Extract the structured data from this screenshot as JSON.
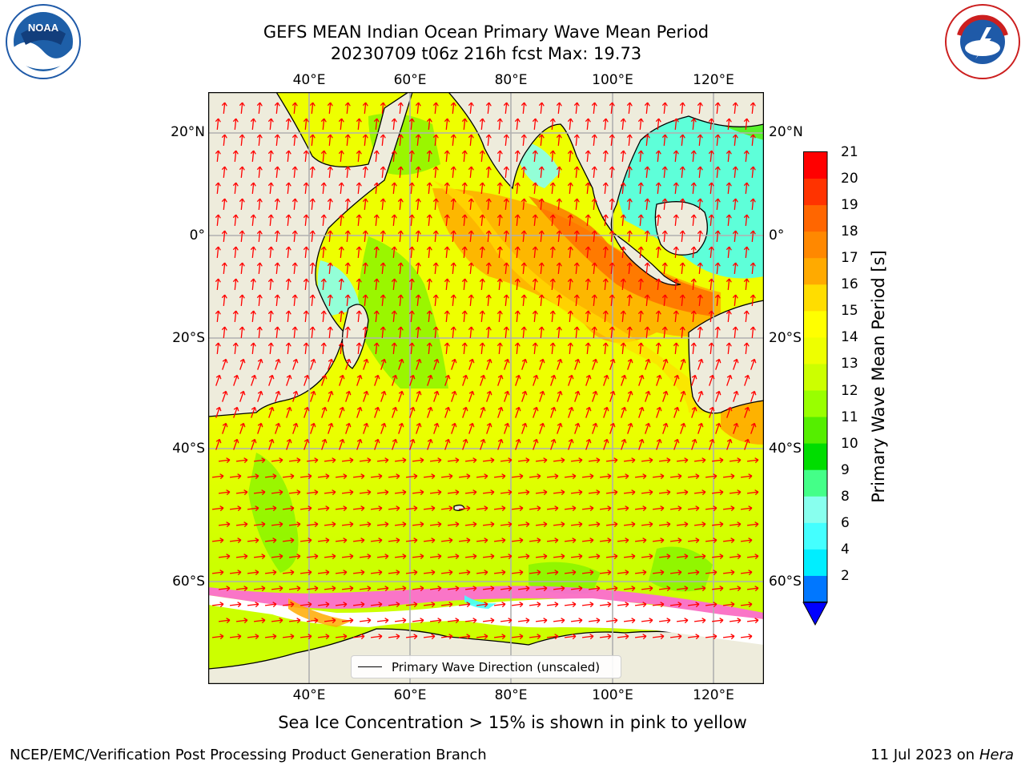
{
  "title_line1": "GEFS MEAN Indian Ocean Primary Wave Mean Period",
  "title_line2": "20230709 t06z 216h fcst   Max: 19.73",
  "lon_ticks": [
    "40°E",
    "60°E",
    "80°E",
    "100°E",
    "120°E"
  ],
  "lat_ticks": [
    "20°N",
    "0°",
    "20°S",
    "40°S",
    "60°S"
  ],
  "legend_label": "Primary Wave Direction (unscaled)",
  "subtitle": "Sea Ice Concentration > 15% is shown in pink to yellow",
  "footer_left": "NCEP/EMC/Verification Post Processing Product Generation Branch",
  "footer_date": "11 Jul 2023 on",
  "footer_machine": "Hera",
  "colorbar": {
    "label": "Primary Wave Mean Period [s]",
    "ticks": [
      "21",
      "20",
      "19",
      "18",
      "17",
      "16",
      "15",
      "14",
      "13",
      "12",
      "11",
      "10",
      "9",
      "8",
      "6",
      "4",
      "2"
    ],
    "colors": [
      "#ff0000",
      "#ff3300",
      "#ff6600",
      "#ff8800",
      "#ffaa00",
      "#ffdd00",
      "#ffff00",
      "#eeff00",
      "#ccff00",
      "#99ff00",
      "#55ee00",
      "#00dd00",
      "#44ff88",
      "#88ffee",
      "#44ffff",
      "#00eeff",
      "#0077ff"
    ],
    "extend_color": "#0000ff"
  },
  "logos": {
    "noaa_text": "NOAA",
    "nws_text": "NATIONAL WEATHER SERVICE"
  },
  "colors": {
    "land": "#eeecdc",
    "grid": "#b0b0b0",
    "arrow": "#ff0000"
  }
}
